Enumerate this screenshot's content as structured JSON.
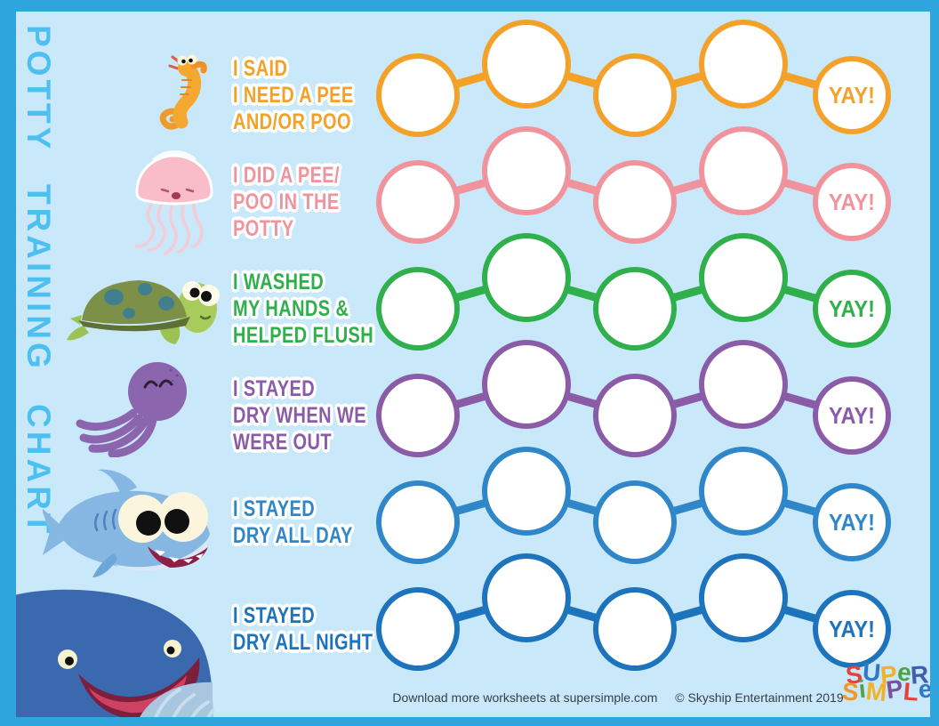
{
  "page": {
    "title": "POTTY TRAINING CHART",
    "background_color": "#C9E8F9",
    "frame_color": "#2FA5DE",
    "title_color": "#4CC0F0"
  },
  "rows": [
    {
      "animal": "seahorse",
      "label_lines": [
        "I SAID",
        "I NEED A PEE",
        "AND/OR POO"
      ],
      "color": "#F4A12A",
      "circle_count": 5,
      "yay_label": "YAY!"
    },
    {
      "animal": "jellyfish",
      "label_lines": [
        "I DID A PEE/",
        "POO IN THE",
        "POTTY"
      ],
      "color": "#F0939D",
      "circle_count": 5,
      "yay_label": "YAY!"
    },
    {
      "animal": "turtle",
      "label_lines": [
        "I WASHED",
        "MY HANDS &",
        "HELPED FLUSH"
      ],
      "color": "#2FB04C",
      "circle_count": 5,
      "yay_label": "YAY!"
    },
    {
      "animal": "octopus",
      "label_lines": [
        "I STAYED",
        "DRY WHEN WE",
        "WERE OUT"
      ],
      "color": "#8A5CA7",
      "circle_count": 5,
      "yay_label": "YAY!"
    },
    {
      "animal": "shark",
      "label_lines": [
        "I STAYED",
        "DRY ALL DAY"
      ],
      "color": "#2F86C8",
      "circle_count": 5,
      "yay_label": "YAY!"
    },
    {
      "animal": "whale",
      "label_lines": [
        "I STAYED",
        "DRY ALL NIGHT"
      ],
      "color": "#1D73BC",
      "circle_count": 5,
      "yay_label": "YAY!"
    }
  ],
  "footer": {
    "download_text": "Download more worksheets at supersimple.com",
    "copyright_text": "© Skyship Entertainment 2019",
    "text_color": "#3A3E48"
  },
  "logo": {
    "line1": "SUPeR",
    "line2": "SiMPLe",
    "letter_colors_line1": [
      "#E8403C",
      "#2F79C8",
      "#F2B228",
      "#4BA446",
      "#3E5FAE"
    ],
    "letter_colors_line2": [
      "#F0972B",
      "#4BA446",
      "#F2B228",
      "#7C4FA0",
      "#E8403C",
      "#2F79C8"
    ]
  }
}
